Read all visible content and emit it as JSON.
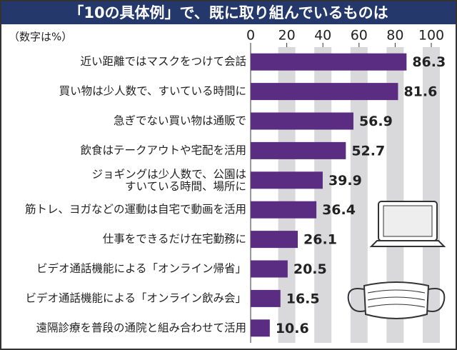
{
  "chart_data": {
    "type": "bar",
    "orientation": "horizontal",
    "title": "「10の具体例」で、既に取り組んでいるものは",
    "unit_note": "（数字は%）",
    "categories": [
      "近い距離ではマスクをつけて会話",
      "買い物は少人数で、すいている時間に",
      "急ぎでない買い物は通販で",
      "飲食はテークアウトや宅配を活用",
      "ジョギングは少人数で、公園は\nすいている時間、場所に",
      "筋トレ、ヨガなどの運動は自宅で動画を活用",
      "仕事をできるだけ在宅勤務に",
      "ビデオ通話機能による「オンライン帰省」",
      "ビデオ通話機能による「オンライン飲み会」",
      "遠隔診療を普段の通院と組み合わせて活用"
    ],
    "values": [
      86.3,
      81.6,
      56.9,
      52.7,
      39.9,
      36.4,
      26.1,
      20.5,
      16.5,
      10.6
    ],
    "color": "#5a2d82",
    "xlim": [
      0,
      100
    ],
    "xticks": [
      0,
      20,
      40,
      60,
      80,
      100
    ],
    "grid": true
  }
}
